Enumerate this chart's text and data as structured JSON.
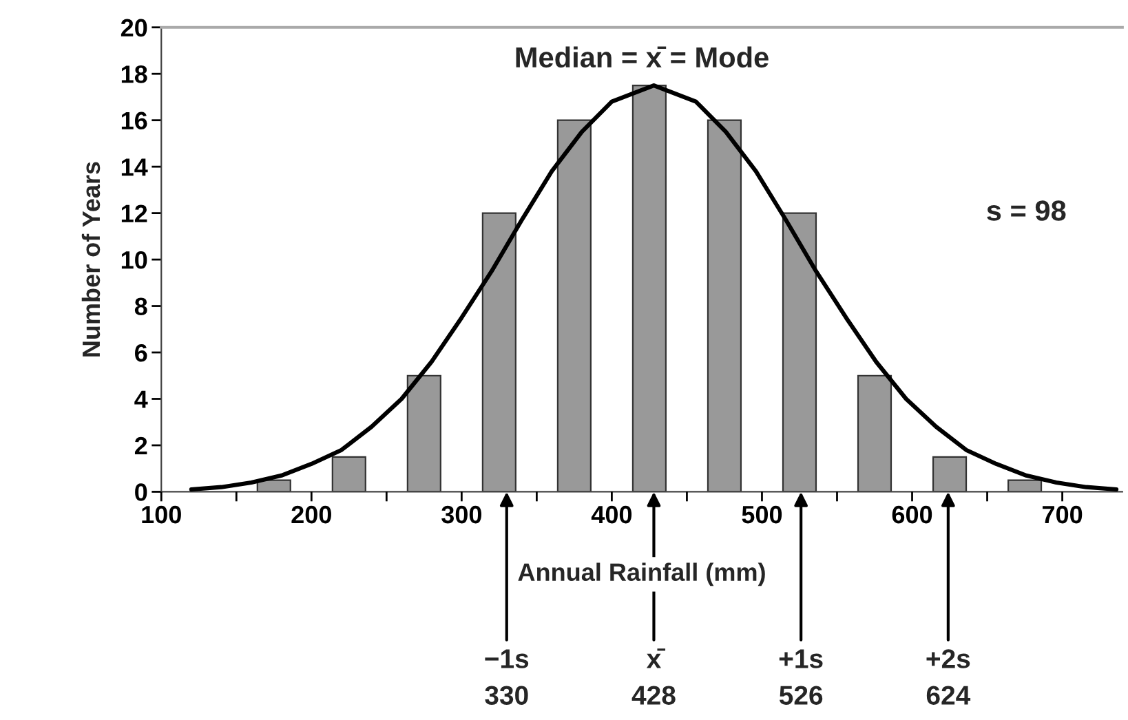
{
  "chart_data": {
    "type": "bar",
    "ylabel": "Number of Years",
    "xlabel": "Annual Rainfall (mm)",
    "x": [
      175,
      225,
      275,
      325,
      375,
      425,
      475,
      525,
      575,
      625,
      675
    ],
    "values": [
      0.5,
      1.5,
      5,
      12,
      16,
      17.5,
      16,
      12,
      5,
      1.5,
      0.5
    ],
    "color": "#999999",
    "series": [
      {
        "type": "line",
        "color": "#000000",
        "x": [
          120,
          140,
          160,
          180,
          200,
          220,
          240,
          260,
          280,
          300,
          320,
          340,
          360,
          380,
          400,
          428,
          456,
          476,
          496,
          516,
          536,
          556,
          576,
          596,
          616,
          636,
          656,
          676,
          696,
          716,
          736
        ],
        "values": [
          0.1,
          0.2,
          0.4,
          0.7,
          1.2,
          1.8,
          2.8,
          4,
          5.6,
          7.5,
          9.5,
          11.7,
          13.8,
          15.5,
          16.8,
          17.5,
          16.8,
          15.5,
          13.8,
          11.7,
          9.5,
          7.5,
          5.6,
          4,
          2.8,
          1.8,
          1.2,
          0.7,
          0.4,
          0.2,
          0.1
        ]
      }
    ],
    "xlim": [
      100,
      740
    ],
    "ylim": [
      0,
      20
    ],
    "xticks": [
      100,
      {
        "value": 150,
        "label": null
      },
      200,
      {
        "value": 250,
        "label": null
      },
      300,
      {
        "value": 350,
        "label": null
      },
      400,
      {
        "value": 450,
        "label": null
      },
      500,
      {
        "value": 550,
        "label": null
      },
      600,
      {
        "value": 650,
        "label": null
      },
      700
    ],
    "yticks": [
      0,
      2,
      4,
      6,
      8,
      10,
      12,
      14,
      16,
      18,
      20
    ],
    "grid": false,
    "legend": false,
    "annotations": [
      "Median = x̄ = Mode",
      "s = 98",
      {
        "text": "−1s\n330",
        "x": 330,
        "y": 0
      },
      {
        "text": "x̄\n428",
        "x": 428,
        "y": 0
      },
      {
        "text": "+1s\n526",
        "x": 526,
        "y": 0
      },
      {
        "text": "+2s\n624",
        "x": 624,
        "y": 0
      }
    ]
  }
}
